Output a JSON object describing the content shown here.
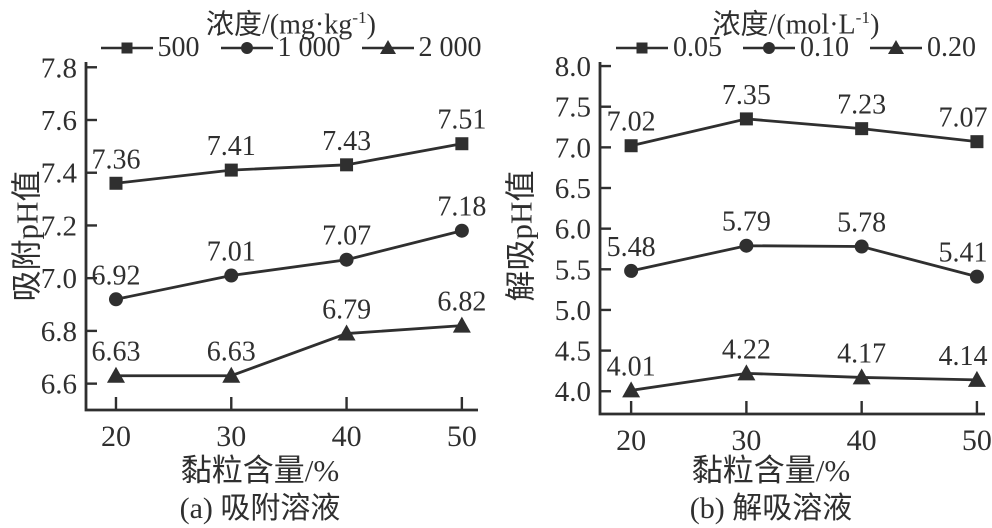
{
  "page": {
    "background": "#ffffff",
    "ink": "#2f2f2f"
  },
  "chart_data": [
    {
      "id": "a",
      "type": "line",
      "legend_title": {
        "prefix": "浓度/(mg·kg",
        "sup": "-1",
        "suffix": ")"
      },
      "legend_position": "top",
      "grid": false,
      "xlabel": "黏粒含量/%",
      "ylabel": "吸附pH值",
      "caption": "(a) 吸附溶液",
      "x": [
        20,
        30,
        40,
        50
      ],
      "xticks": [
        20,
        30,
        40,
        50
      ],
      "yticks": [
        6.6,
        6.8,
        7.0,
        7.2,
        7.4,
        7.6,
        7.8
      ],
      "xlim": [
        17.4,
        51.4
      ],
      "ylim": [
        6.5,
        7.82
      ],
      "series": [
        {
          "name": "500",
          "marker": "square",
          "values": [
            7.36,
            7.41,
            7.43,
            7.51
          ],
          "labels": [
            "7.36",
            "7.41",
            "7.43",
            "7.51"
          ]
        },
        {
          "name": "1 000",
          "marker": "circle",
          "values": [
            6.92,
            7.01,
            7.07,
            7.18
          ],
          "labels": [
            "6.92",
            "7.01",
            "7.07",
            "7.18"
          ]
        },
        {
          "name": "2 000",
          "marker": "triangle",
          "values": [
            6.63,
            6.63,
            6.79,
            6.82
          ],
          "labels": [
            "6.63",
            "6.63",
            "6.79",
            "6.82"
          ]
        }
      ]
    },
    {
      "id": "b",
      "type": "line",
      "legend_title": {
        "prefix": "浓度/(mol·L",
        "sup": "-1",
        "suffix": ")"
      },
      "legend_position": "top",
      "grid": false,
      "xlabel": "黏粒含量/%",
      "ylabel": "解吸pH值",
      "caption": "(b) 解吸溶液",
      "x": [
        20,
        30,
        40,
        50
      ],
      "xticks": [
        20,
        30,
        40,
        50
      ],
      "yticks": [
        4.0,
        4.5,
        5.0,
        5.5,
        6.0,
        6.5,
        7.0,
        7.5,
        8.0
      ],
      "xlim": [
        17.3,
        50.7
      ],
      "ylim": [
        3.72,
        8.05
      ],
      "series": [
        {
          "name": "0.05",
          "marker": "square",
          "values": [
            7.02,
            7.35,
            7.23,
            7.07
          ],
          "labels": [
            "7.02",
            "7.35",
            "7.23",
            "7.07"
          ]
        },
        {
          "name": "0.10",
          "marker": "circle",
          "values": [
            5.48,
            5.79,
            5.78,
            5.41
          ],
          "labels": [
            "5.48",
            "5.79",
            "5.78",
            "5.41"
          ]
        },
        {
          "name": "0.20",
          "marker": "triangle",
          "values": [
            4.01,
            4.22,
            4.17,
            4.14
          ],
          "labels": [
            "4.01",
            "4.22",
            "4.17",
            "4.14"
          ]
        }
      ]
    }
  ]
}
